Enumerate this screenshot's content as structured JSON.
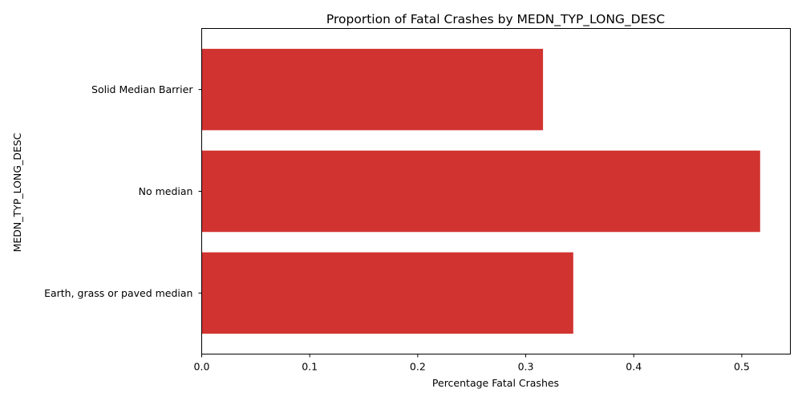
{
  "chart_data": {
    "type": "bar",
    "orientation": "horizontal",
    "title": "Proportion of Fatal Crashes by MEDN_TYP_LONG_DESC",
    "xlabel": "Percentage Fatal Crashes",
    "ylabel": "MEDN_TYP_LONG_DESC",
    "categories": [
      "Earth, grass or paved median",
      "No median",
      "Solid Median Barrier"
    ],
    "values": [
      0.344,
      0.517,
      0.316
    ],
    "xlim": [
      0,
      0.545
    ],
    "xticks": [
      0,
      0.1,
      0.2,
      0.3,
      0.4,
      0.5
    ],
    "xtick_labels": [
      "0.0",
      "0.1",
      "0.2",
      "0.3",
      "0.4",
      "0.5"
    ],
    "bar_color": "#d13330",
    "grid": false,
    "legend": "none"
  }
}
